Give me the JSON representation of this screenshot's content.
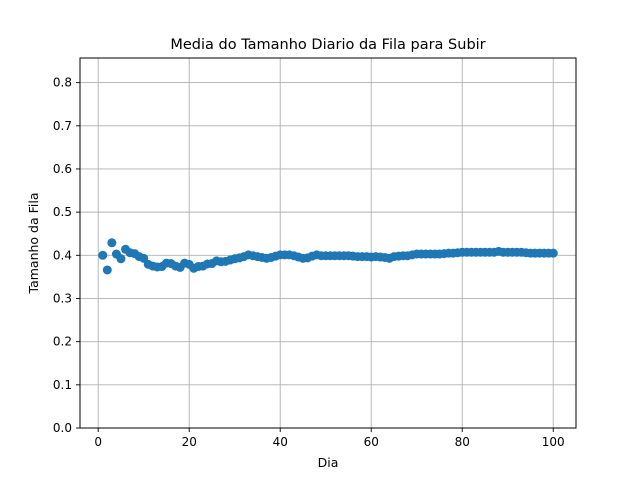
{
  "chart_data": {
    "type": "scatter",
    "title": "Media do Tamanho Diario da Fila para Subir",
    "xlabel": "Dia",
    "ylabel": "Tamanho da Fila",
    "xlim": [
      -4,
      105
    ],
    "ylim": [
      0,
      0.857
    ],
    "x_ticks": [
      0,
      20,
      40,
      60,
      80,
      100
    ],
    "y_ticks": [
      0.0,
      0.1,
      0.2,
      0.3,
      0.4,
      0.5,
      0.6,
      0.7,
      0.8
    ],
    "x_tick_labels": [
      "0",
      "20",
      "40",
      "60",
      "80",
      "100"
    ],
    "y_tick_labels": [
      "0.0",
      "0.1",
      "0.2",
      "0.3",
      "0.4",
      "0.5",
      "0.6",
      "0.7",
      "0.8"
    ],
    "grid": true,
    "marker_color": "#1f77b4",
    "x": [
      1,
      2,
      3,
      4,
      5,
      6,
      7,
      8,
      9,
      10,
      11,
      12,
      13,
      14,
      15,
      16,
      17,
      18,
      19,
      20,
      21,
      22,
      23,
      24,
      25,
      26,
      27,
      28,
      29,
      30,
      31,
      32,
      33,
      34,
      35,
      36,
      37,
      38,
      39,
      40,
      41,
      42,
      43,
      44,
      45,
      46,
      47,
      48,
      49,
      50,
      51,
      52,
      53,
      54,
      55,
      56,
      57,
      58,
      59,
      60,
      61,
      62,
      63,
      64,
      65,
      66,
      67,
      68,
      69,
      70,
      71,
      72,
      73,
      74,
      75,
      76,
      77,
      78,
      79,
      80,
      81,
      82,
      83,
      84,
      85,
      86,
      87,
      88,
      89,
      90,
      91,
      92,
      93,
      94,
      95,
      96,
      97,
      98,
      99,
      100
    ],
    "y": [
      0.4,
      0.366,
      0.429,
      0.403,
      0.392,
      0.414,
      0.406,
      0.404,
      0.397,
      0.393,
      0.379,
      0.375,
      0.373,
      0.374,
      0.382,
      0.381,
      0.375,
      0.372,
      0.382,
      0.379,
      0.37,
      0.374,
      0.375,
      0.38,
      0.381,
      0.387,
      0.385,
      0.386,
      0.389,
      0.392,
      0.394,
      0.397,
      0.401,
      0.399,
      0.397,
      0.395,
      0.393,
      0.395,
      0.398,
      0.401,
      0.401,
      0.401,
      0.399,
      0.396,
      0.393,
      0.394,
      0.398,
      0.401,
      0.399,
      0.399,
      0.399,
      0.399,
      0.399,
      0.399,
      0.399,
      0.398,
      0.397,
      0.397,
      0.397,
      0.396,
      0.397,
      0.396,
      0.395,
      0.393,
      0.397,
      0.398,
      0.399,
      0.399,
      0.401,
      0.403,
      0.403,
      0.403,
      0.403,
      0.403,
      0.403,
      0.404,
      0.405,
      0.405,
      0.406,
      0.407,
      0.407,
      0.407,
      0.407,
      0.407,
      0.407,
      0.407,
      0.407,
      0.409,
      0.407,
      0.407,
      0.407,
      0.407,
      0.407,
      0.406,
      0.405,
      0.405,
      0.405,
      0.405,
      0.405,
      0.405
    ]
  }
}
